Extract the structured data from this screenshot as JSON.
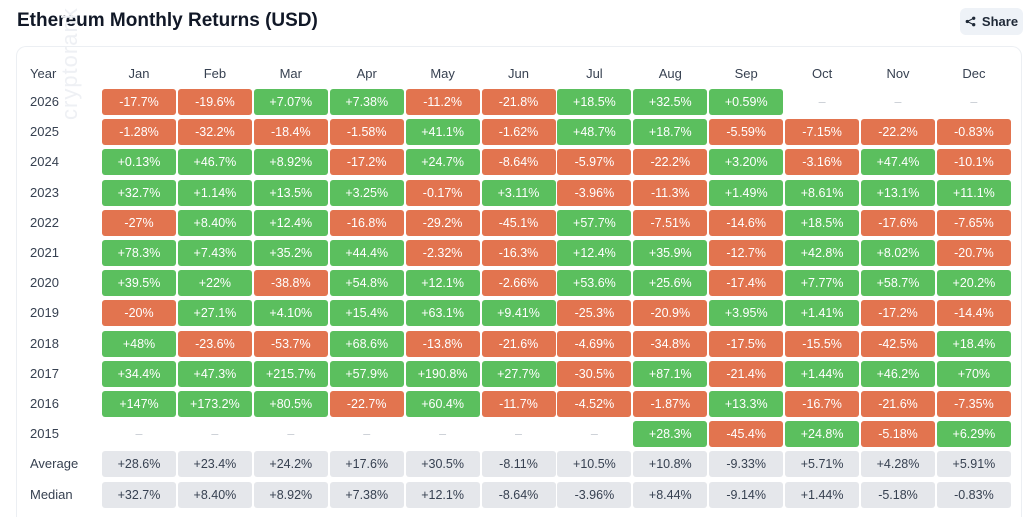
{
  "header": {
    "title": "Ethereum Monthly Returns (USD)",
    "share_label": "Share"
  },
  "table": {
    "year_header": "Year",
    "watermark": "cryptorank"
  },
  "colors": {
    "positive": "#5bbf5e",
    "negative": "#e2744f",
    "stat_background": "#e5e7eb"
  },
  "chart_data": {
    "type": "table",
    "title": "Ethereum Monthly Returns (USD)",
    "columns": [
      "Jan",
      "Feb",
      "Mar",
      "Apr",
      "May",
      "Jun",
      "Jul",
      "Aug",
      "Sep",
      "Oct",
      "Nov",
      "Dec"
    ],
    "rows": [
      {
        "year": "2026",
        "values": [
          "-17.7%",
          "-19.6%",
          "+7.07%",
          "+7.38%",
          "-11.2%",
          "-21.8%",
          "+18.5%",
          "+32.5%",
          "+0.59%",
          "–",
          "–",
          "–"
        ]
      },
      {
        "year": "2025",
        "values": [
          "-1.28%",
          "-32.2%",
          "-18.4%",
          "-1.58%",
          "+41.1%",
          "-1.62%",
          "+48.7%",
          "+18.7%",
          "-5.59%",
          "-7.15%",
          "-22.2%",
          "-0.83%"
        ]
      },
      {
        "year": "2024",
        "values": [
          "+0.13%",
          "+46.7%",
          "+8.92%",
          "-17.2%",
          "+24.7%",
          "-8.64%",
          "-5.97%",
          "-22.2%",
          "+3.20%",
          "-3.16%",
          "+47.4%",
          "-10.1%"
        ]
      },
      {
        "year": "2023",
        "values": [
          "+32.7%",
          "+1.14%",
          "+13.5%",
          "+3.25%",
          "-0.17%",
          "+3.11%",
          "-3.96%",
          "-11.3%",
          "+1.49%",
          "+8.61%",
          "+13.1%",
          "+11.1%"
        ]
      },
      {
        "year": "2022",
        "values": [
          "-27%",
          "+8.40%",
          "+12.4%",
          "-16.8%",
          "-29.2%",
          "-45.1%",
          "+57.7%",
          "-7.51%",
          "-14.6%",
          "+18.5%",
          "-17.6%",
          "-7.65%"
        ]
      },
      {
        "year": "2021",
        "values": [
          "+78.3%",
          "+7.43%",
          "+35.2%",
          "+44.4%",
          "-2.32%",
          "-16.3%",
          "+12.4%",
          "+35.9%",
          "-12.7%",
          "+42.8%",
          "+8.02%",
          "-20.7%"
        ]
      },
      {
        "year": "2020",
        "values": [
          "+39.5%",
          "+22%",
          "-38.8%",
          "+54.8%",
          "+12.1%",
          "-2.66%",
          "+53.6%",
          "+25.6%",
          "-17.4%",
          "+7.77%",
          "+58.7%",
          "+20.2%"
        ]
      },
      {
        "year": "2019",
        "values": [
          "-20%",
          "+27.1%",
          "+4.10%",
          "+15.4%",
          "+63.1%",
          "+9.41%",
          "-25.3%",
          "-20.9%",
          "+3.95%",
          "+1.41%",
          "-17.2%",
          "-14.4%"
        ]
      },
      {
        "year": "2018",
        "values": [
          "+48%",
          "-23.6%",
          "-53.7%",
          "+68.6%",
          "-13.8%",
          "-21.6%",
          "-4.69%",
          "-34.8%",
          "-17.5%",
          "-15.5%",
          "-42.5%",
          "+18.4%"
        ]
      },
      {
        "year": "2017",
        "values": [
          "+34.4%",
          "+47.3%",
          "+215.7%",
          "+57.9%",
          "+190.8%",
          "+27.7%",
          "-30.5%",
          "+87.1%",
          "-21.4%",
          "+1.44%",
          "+46.2%",
          "+70%"
        ]
      },
      {
        "year": "2016",
        "values": [
          "+147%",
          "+173.2%",
          "+80.5%",
          "-22.7%",
          "+60.4%",
          "-11.7%",
          "-4.52%",
          "-1.87%",
          "+13.3%",
          "-16.7%",
          "-21.6%",
          "-7.35%"
        ]
      },
      {
        "year": "2015",
        "values": [
          "–",
          "–",
          "–",
          "–",
          "–",
          "–",
          "–",
          "+28.3%",
          "-45.4%",
          "+24.8%",
          "-5.18%",
          "+6.29%"
        ]
      }
    ],
    "summary_rows": [
      {
        "label": "Average",
        "values": [
          "+28.6%",
          "+23.4%",
          "+24.2%",
          "+17.6%",
          "+30.5%",
          "-8.11%",
          "+10.5%",
          "+10.8%",
          "-9.33%",
          "+5.71%",
          "+4.28%",
          "+5.91%"
        ]
      },
      {
        "label": "Median",
        "values": [
          "+32.7%",
          "+8.40%",
          "+8.92%",
          "+7.38%",
          "+12.1%",
          "-8.64%",
          "-3.96%",
          "+8.44%",
          "-9.14%",
          "+1.44%",
          "-5.18%",
          "-0.83%"
        ]
      }
    ]
  }
}
